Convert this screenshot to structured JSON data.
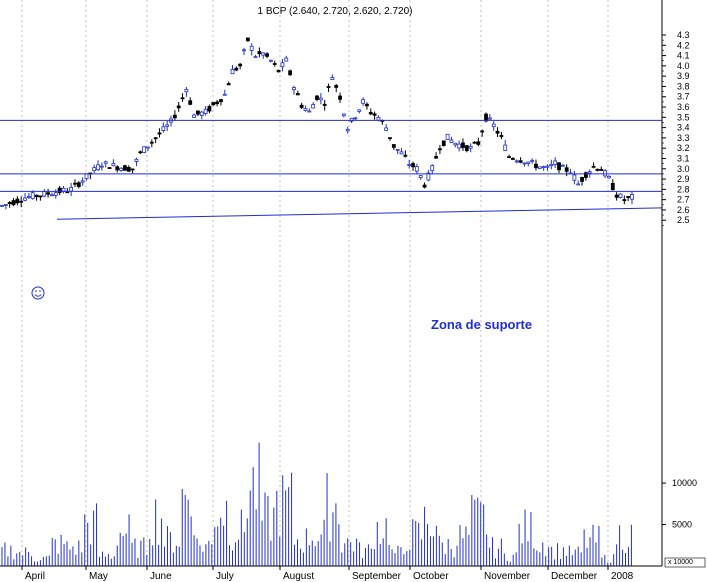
{
  "chart_data": {
    "type": "candlestick",
    "title": "1 BCP (2.640, 2.720, 2.620, 2.720)",
    "x_ticks": [
      "April",
      "May",
      "June",
      "July",
      "August",
      "September",
      "October",
      "November",
      "December",
      "2008"
    ],
    "y_ticks": [
      "4.3",
      "4.2",
      "4.1",
      "4.0",
      "3.9",
      "3.8",
      "3.7",
      "3.6",
      "3.5",
      "3.4",
      "3.3",
      "3.2",
      "3.1",
      "3.0",
      "2.9",
      "2.8",
      "2.7",
      "2.6",
      "2.5"
    ],
    "volume_ticks": [
      "10000",
      "5000"
    ],
    "volume_scale_label": "x 10000",
    "ylim": [
      2.42,
      4.35
    ],
    "volume_ylim": [
      0,
      17000
    ],
    "price_path": [
      [
        0,
        2.64
      ],
      [
        6,
        2.72
      ],
      [
        12,
        2.76
      ],
      [
        18,
        2.8
      ],
      [
        22,
        2.92
      ],
      [
        26,
        3.05
      ],
      [
        30,
        3.02
      ],
      [
        34,
        3.0
      ],
      [
        36,
        3.15
      ],
      [
        40,
        3.3
      ],
      [
        44,
        3.45
      ],
      [
        46,
        3.6
      ],
      [
        48,
        3.78
      ],
      [
        50,
        3.52
      ],
      [
        53,
        3.55
      ],
      [
        56,
        3.65
      ],
      [
        58,
        3.72
      ],
      [
        60,
        3.95
      ],
      [
        62,
        4.0
      ],
      [
        64,
        4.25
      ],
      [
        66,
        4.1
      ],
      [
        68,
        4.12
      ],
      [
        70,
        4.05
      ],
      [
        72,
        3.95
      ],
      [
        74,
        4.05
      ],
      [
        76,
        3.8
      ],
      [
        78,
        3.62
      ],
      [
        80,
        3.55
      ],
      [
        82,
        3.7
      ],
      [
        84,
        3.65
      ],
      [
        86,
        3.9
      ],
      [
        88,
        3.7
      ],
      [
        90,
        3.4
      ],
      [
        92,
        3.52
      ],
      [
        94,
        3.65
      ],
      [
        96,
        3.55
      ],
      [
        98,
        3.5
      ],
      [
        100,
        3.4
      ],
      [
        102,
        3.22
      ],
      [
        104,
        3.15
      ],
      [
        106,
        3.05
      ],
      [
        108,
        3.0
      ],
      [
        110,
        2.85
      ],
      [
        112,
        3.0
      ],
      [
        114,
        3.22
      ],
      [
        116,
        3.3
      ],
      [
        118,
        3.25
      ],
      [
        120,
        3.22
      ],
      [
        122,
        3.2
      ],
      [
        124,
        3.25
      ],
      [
        126,
        3.5
      ],
      [
        128,
        3.42
      ],
      [
        130,
        3.3
      ],
      [
        132,
        3.12
      ],
      [
        134,
        3.1
      ],
      [
        136,
        3.08
      ],
      [
        138,
        3.05
      ],
      [
        140,
        3.02
      ],
      [
        142,
        3.0
      ],
      [
        144,
        3.05
      ],
      [
        146,
        3.0
      ],
      [
        148,
        2.98
      ],
      [
        150,
        2.85
      ],
      [
        152,
        2.95
      ],
      [
        154,
        3.02
      ],
      [
        156,
        3.0
      ],
      [
        158,
        2.9
      ],
      [
        160,
        2.75
      ],
      [
        162,
        2.7
      ],
      [
        164,
        2.72
      ]
    ],
    "volume_levels": [
      3000,
      2500,
      1500,
      4200,
      3500,
      8000,
      2000,
      6500,
      3500,
      9500,
      5000,
      13000,
      4000,
      11000,
      7000,
      15000,
      9000,
      12000,
      5000,
      6000,
      11500,
      4500,
      3000,
      7500,
      2500,
      6000,
      8500,
      4000,
      5500,
      9000,
      3500,
      2000,
      7000,
      4500,
      3000,
      2500,
      5000,
      1500,
      6000,
      3000
    ],
    "horizontal_lines": [
      {
        "name": "resistance",
        "value": 3.47
      },
      {
        "name": "support-upper",
        "value": 2.95
      },
      {
        "name": "support-lower",
        "value": 2.78
      }
    ],
    "trend_line": {
      "from": [
        2008,
        2.5
      ],
      "to": [
        2008,
        2.62
      ]
    },
    "annotation": "Zona de suporte",
    "colors": {
      "up": "#1f2fd0",
      "down": "#000000",
      "lines": "#1f2fd0",
      "grid": "#b0b0b0",
      "smiley": "#1f2fd0"
    }
  }
}
